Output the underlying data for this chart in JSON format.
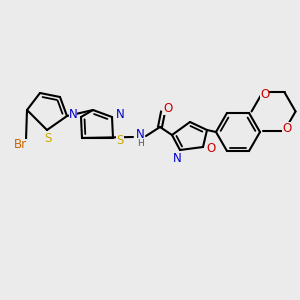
{
  "bg_color": "#ebebeb",
  "bond_color": "#000000",
  "colors": {
    "Br": "#cc6600",
    "S": "#ccaa00",
    "N": "#0000cc",
    "O": "#cc0000",
    "C": "#000000",
    "H": "#555555"
  },
  "lw": 1.5,
  "dlw": 1.3,
  "fs": 8.5
}
